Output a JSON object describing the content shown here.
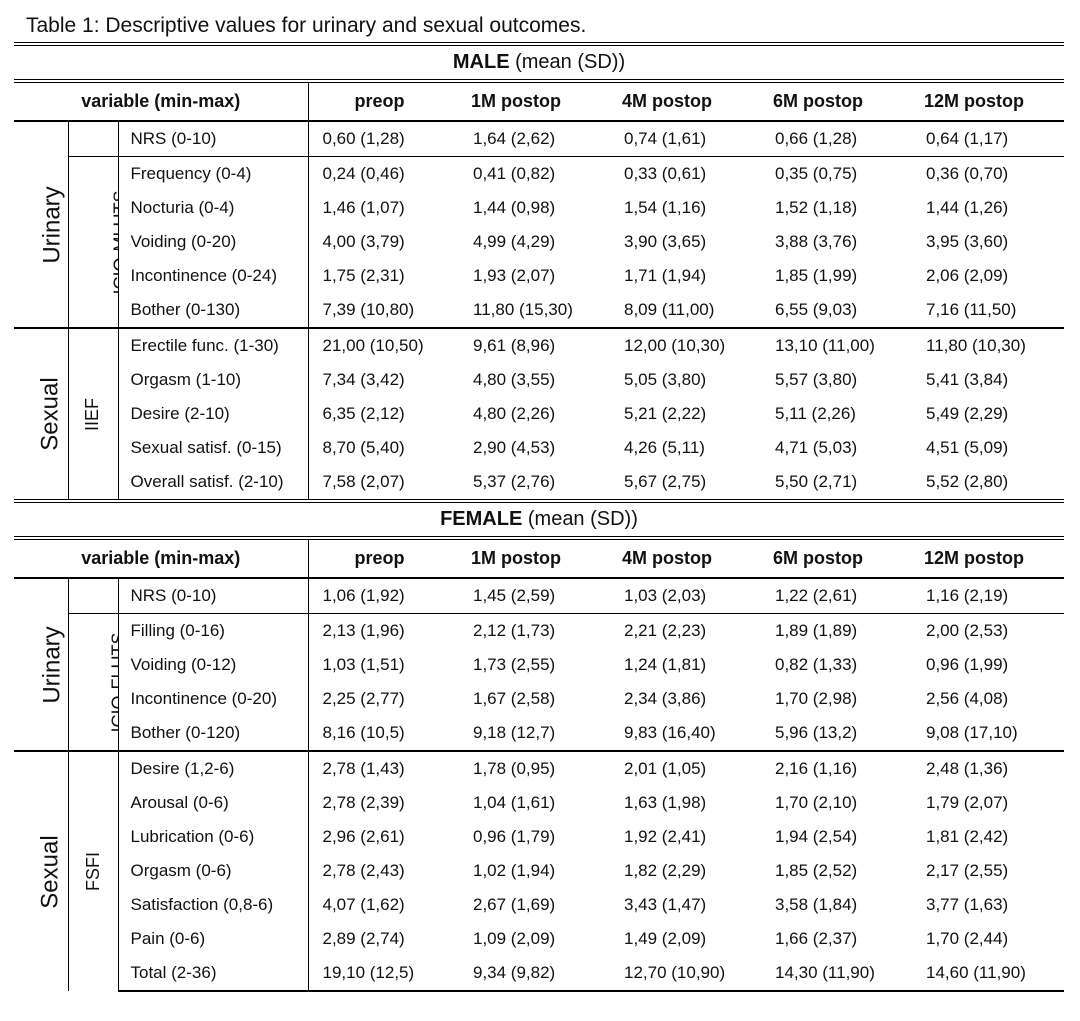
{
  "caption": "Table 1: Descriptive values for urinary and sexual outcomes.",
  "header": {
    "variable": "variable (min-max)",
    "timepoints": [
      "preop",
      "1M postop",
      "4M postop",
      "6M postop",
      "12M postop"
    ]
  },
  "male": {
    "title_bold": "MALE",
    "title_rest": " (mean (SD))",
    "urinary_label": "Urinary",
    "urinary_scale": "ICIQ-MLUTS",
    "sexual_label": "Sexual",
    "sexual_scale": "IIEF",
    "nrs": {
      "label": "NRS (0-10)",
      "values": [
        "0,60 (1,28)",
        "1,64 (2,62)",
        "0,74 (1,61)",
        "0,66 (1,28)",
        "0,64 (1,17)"
      ]
    },
    "urinary_rows": [
      {
        "label": "Frequency (0-4)",
        "values": [
          "0,24 (0,46)",
          "0,41 (0,82)",
          "0,33 (0,61)",
          "0,35 (0,75)",
          "0,36 (0,70)"
        ]
      },
      {
        "label": "Nocturia (0-4)",
        "values": [
          "1,46 (1,07)",
          "1,44 (0,98)",
          "1,54 (1,16)",
          "1,52 (1,18)",
          "1,44 (1,26)"
        ]
      },
      {
        "label": "Voiding (0-20)",
        "values": [
          "4,00 (3,79)",
          "4,99 (4,29)",
          "3,90 (3,65)",
          "3,88 (3,76)",
          "3,95 (3,60)"
        ]
      },
      {
        "label": "Incontinence (0-24)",
        "values": [
          "1,75 (2,31)",
          "1,93 (2,07)",
          "1,71 (1,94)",
          "1,85 (1,99)",
          "2,06 (2,09)"
        ]
      },
      {
        "label": "Bother (0-130)",
        "values": [
          "7,39 (10,80)",
          "11,80 (15,30)",
          "8,09 (11,00)",
          "6,55 (9,03)",
          "7,16 (11,50)"
        ]
      }
    ],
    "sexual_rows": [
      {
        "label": "Erectile func. (1-30)",
        "values": [
          "21,00 (10,50)",
          "9,61 (8,96)",
          "12,00 (10,30)",
          "13,10 (11,00)",
          "11,80 (10,30)"
        ]
      },
      {
        "label": "Orgasm (1-10)",
        "values": [
          "7,34 (3,42)",
          "4,80 (3,55)",
          "5,05 (3,80)",
          "5,57 (3,80)",
          "5,41 (3,84)"
        ]
      },
      {
        "label": "Desire (2-10)",
        "values": [
          "6,35 (2,12)",
          "4,80 (2,26)",
          "5,21 (2,22)",
          "5,11 (2,26)",
          "5,49 (2,29)"
        ]
      },
      {
        "label": "Sexual satisf. (0-15)",
        "values": [
          "8,70 (5,40)",
          "2,90 (4,53)",
          "4,26 (5,11)",
          "4,71 (5,03)",
          "4,51 (5,09)"
        ]
      },
      {
        "label": "Overall satisf. (2-10)",
        "values": [
          "7,58 (2,07)",
          "5,37 (2,76)",
          "5,67 (2,75)",
          "5,50 (2,71)",
          "5,52 (2,80)"
        ]
      }
    ]
  },
  "female": {
    "title_bold": "FEMALE",
    "title_rest": " (mean (SD))",
    "urinary_label": "Urinary",
    "urinary_scale": "ICIQ-FLUTS",
    "sexual_label": "Sexual",
    "sexual_scale": "FSFI",
    "nrs": {
      "label": "NRS (0-10)",
      "values": [
        "1,06 (1,92)",
        "1,45 (2,59)",
        "1,03 (2,03)",
        "1,22 (2,61)",
        "1,16 (2,19)"
      ]
    },
    "urinary_rows": [
      {
        "label": "Filling (0-16)",
        "values": [
          "2,13 (1,96)",
          "2,12 (1,73)",
          "2,21 (2,23)",
          "1,89 (1,89)",
          "2,00 (2,53)"
        ]
      },
      {
        "label": "Voiding (0-12)",
        "values": [
          "1,03 (1,51)",
          "1,73 (2,55)",
          "1,24 (1,81)",
          "0,82 (1,33)",
          "0,96 (1,99)"
        ]
      },
      {
        "label": "Incontinence (0-20)",
        "values": [
          "2,25 (2,77)",
          "1,67 (2,58)",
          "2,34 (3,86)",
          "1,70 (2,98)",
          "2,56 (4,08)"
        ]
      },
      {
        "label": "Bother (0-120)",
        "values": [
          "8,16 (10,5)",
          "9,18 (12,7)",
          "9,83 (16,40)",
          "5,96 (13,2)",
          "9,08 (17,10)"
        ]
      }
    ],
    "sexual_rows": [
      {
        "label": "Desire (1,2-6)",
        "values": [
          "2,78 (1,43)",
          "1,78 (0,95)",
          "2,01 (1,05)",
          "2,16 (1,16)",
          "2,48 (1,36)"
        ]
      },
      {
        "label": "Arousal (0-6)",
        "values": [
          "2,78 (2,39)",
          "1,04 (1,61)",
          "1,63 (1,98)",
          "1,70 (2,10)",
          "1,79 (2,07)"
        ]
      },
      {
        "label": "Lubrication (0-6)",
        "values": [
          "2,96 (2,61)",
          "0,96 (1,79)",
          "1,92 (2,41)",
          "1,94 (2,54)",
          "1,81 (2,42)"
        ]
      },
      {
        "label": "Orgasm (0-6)",
        "values": [
          "2,78 (2,43)",
          "1,02 (1,94)",
          "1,82 (2,29)",
          "1,85 (2,52)",
          "2,17 (2,55)"
        ]
      },
      {
        "label": "Satisfaction (0,8-6)",
        "values": [
          "4,07 (1,62)",
          "2,67 (1,69)",
          "3,43 (1,47)",
          "3,58 (1,84)",
          "3,77 (1,63)"
        ]
      },
      {
        "label": "Pain (0-6)",
        "values": [
          "2,89 (2,74)",
          "1,09 (2,09)",
          "1,49 (2,09)",
          "1,66 (2,37)",
          "1,70 (2,44)"
        ]
      },
      {
        "label": "Total (2-36)",
        "values": [
          "19,10 (12,5)",
          "9,34 (9,82)",
          "12,70 (10,90)",
          "14,30 (11,90)",
          "14,60 (11,90)"
        ]
      }
    ]
  }
}
